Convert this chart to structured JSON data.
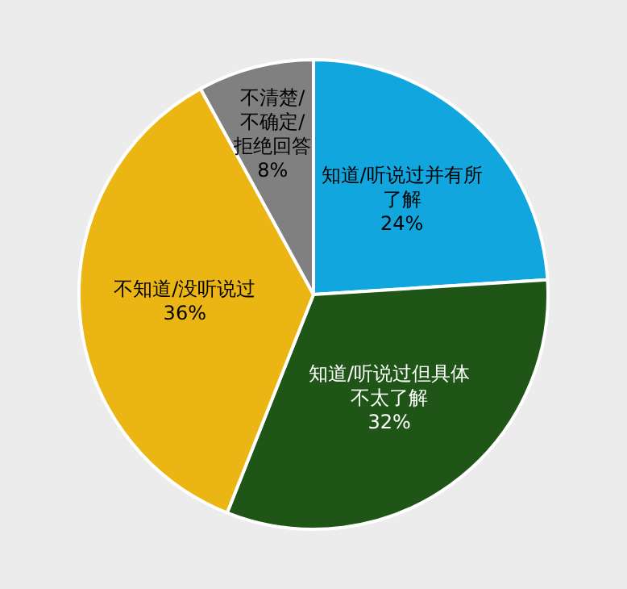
{
  "chart_data": {
    "type": "pie",
    "categories": [
      "知道/听说过并有所了解",
      "知道/听说过但具体不太了解",
      "不知道/没听说过",
      "不清楚/不确定/拒绝回答"
    ],
    "values": [
      24,
      32,
      36,
      8
    ],
    "colors": [
      "#12a6de",
      "#1f5516",
      "#ebb613",
      "#808080"
    ],
    "value_labels": [
      "24%",
      "32%",
      "36%",
      "8%"
    ],
    "legend": false
  }
}
